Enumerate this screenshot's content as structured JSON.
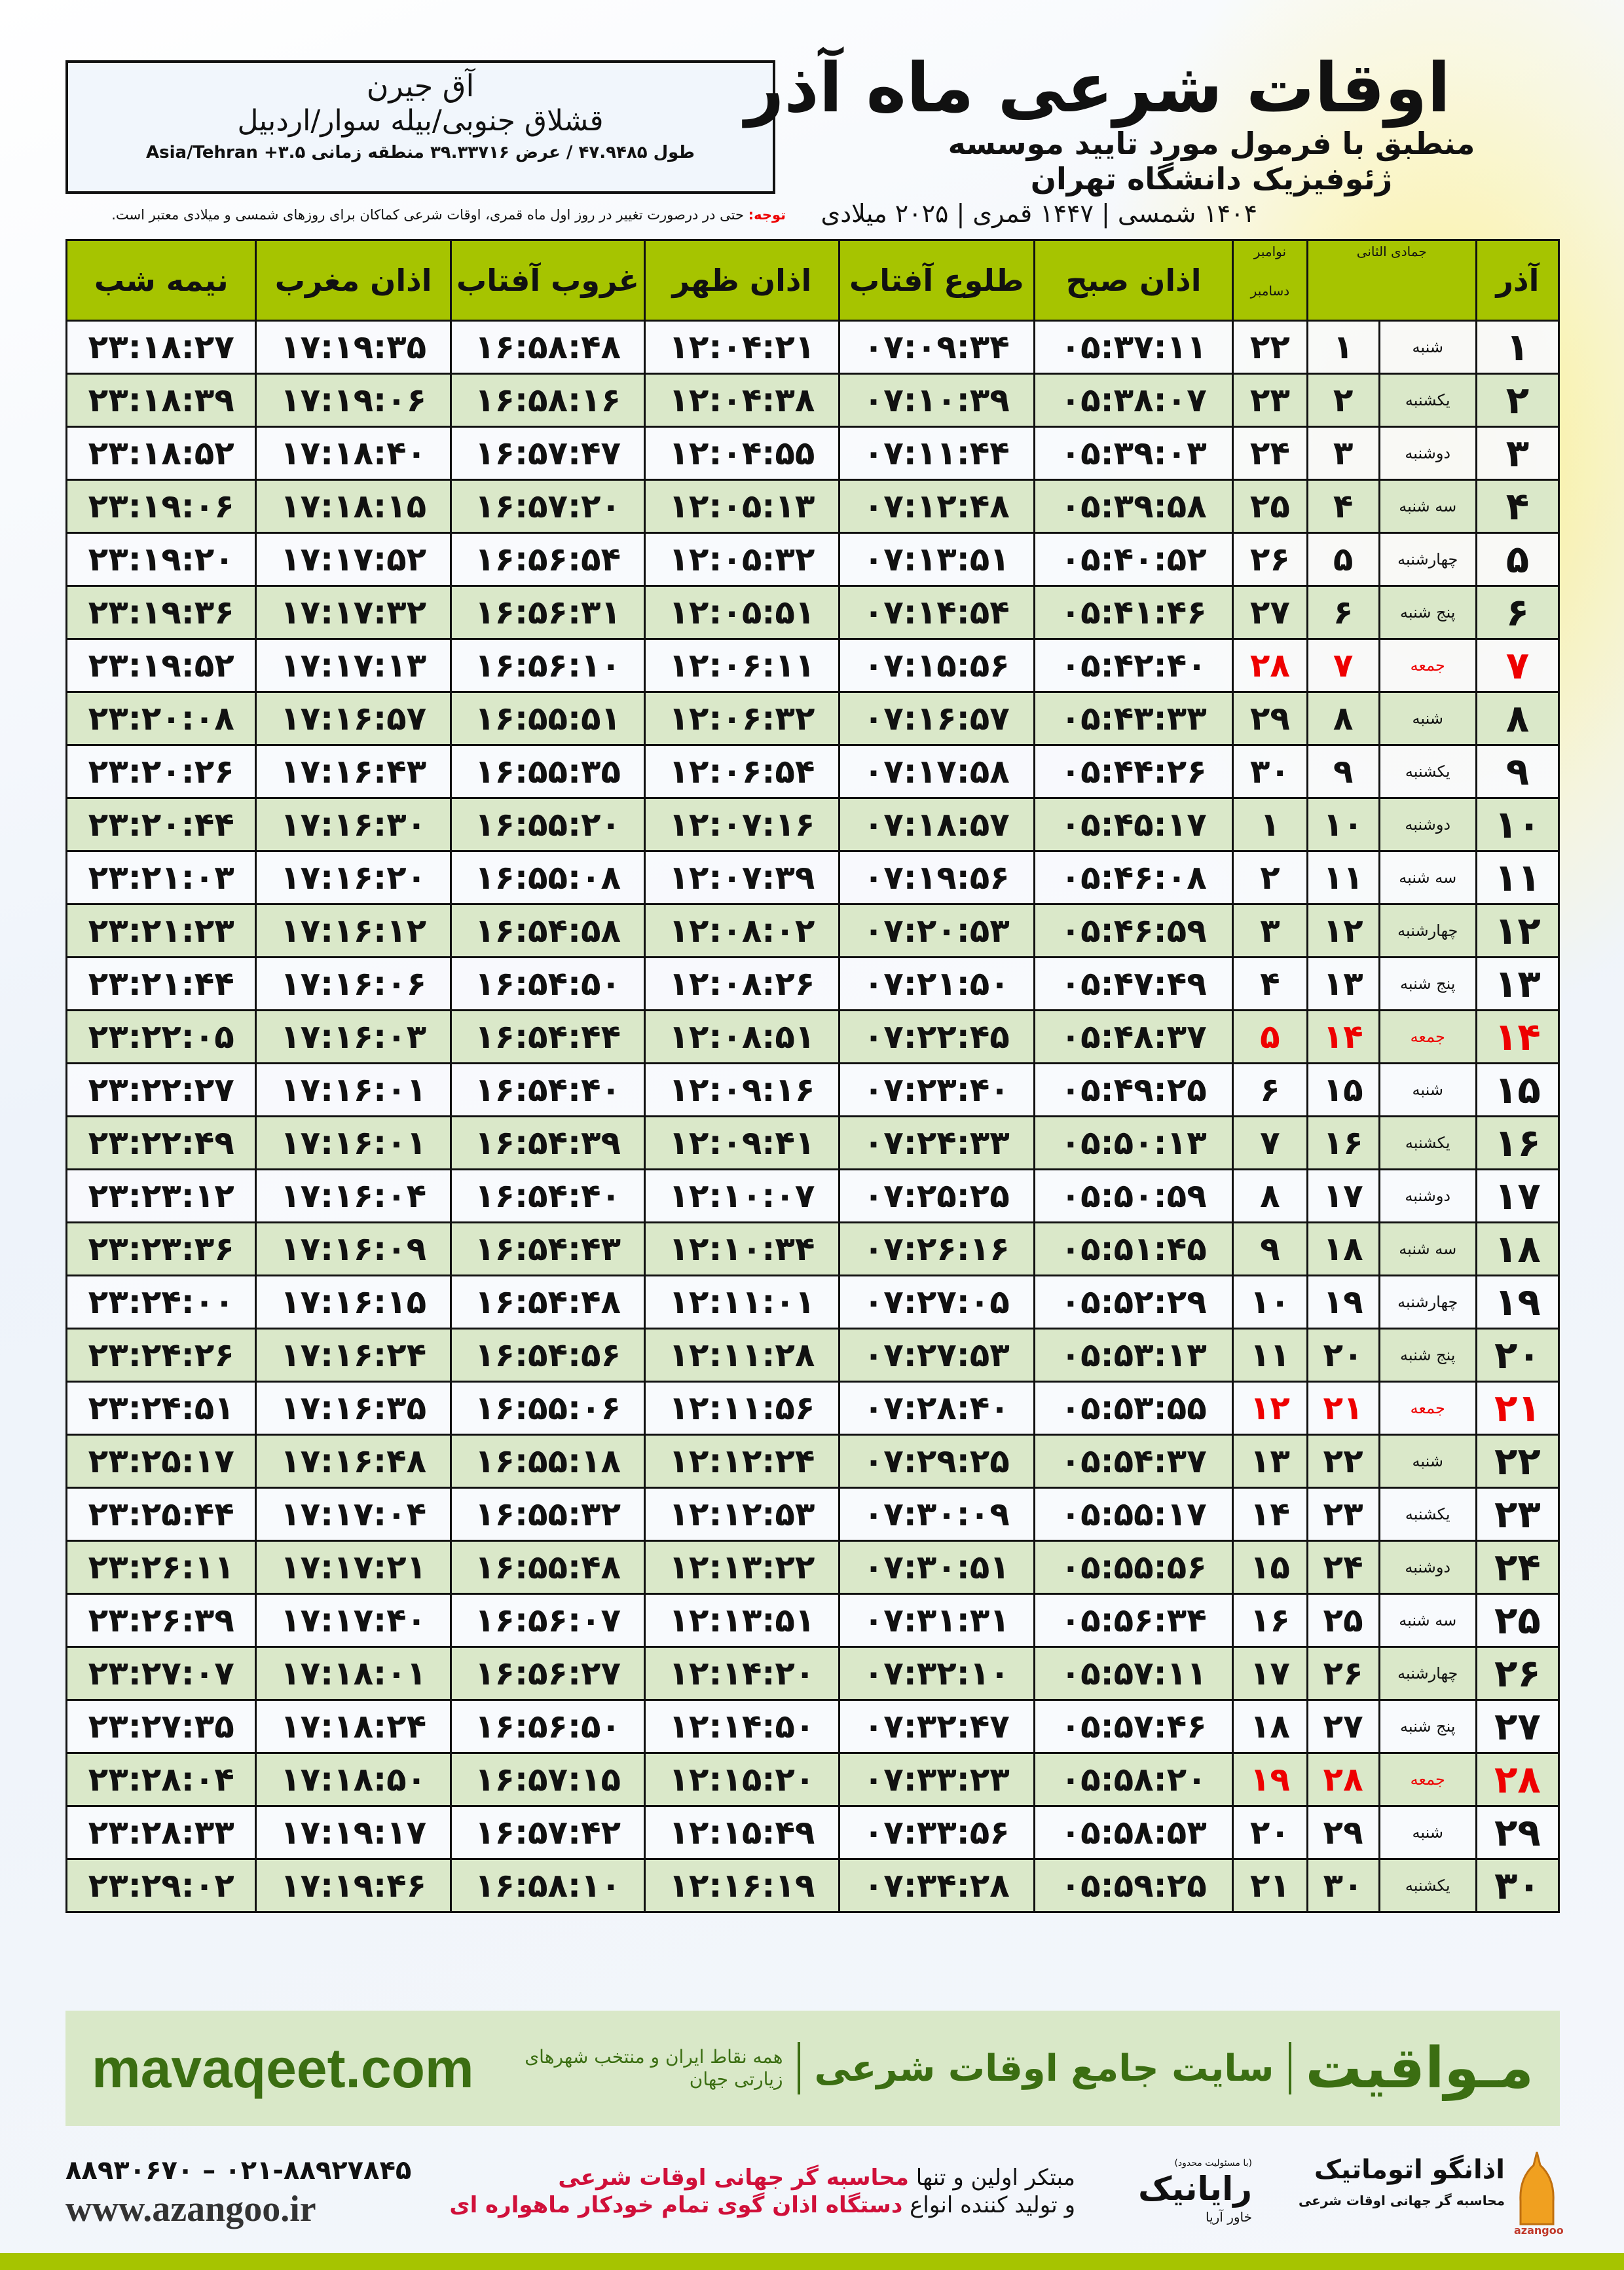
{
  "location": {
    "name": "آق جیرن",
    "region": "قشلاق جنوبی/بیله سوار/اردبیل",
    "coords": "طول ۴۷.۹۴۸۵ / عرض ۳۹.۳۳۷۱۶ منطقه زمانی ۳.۵+ Asia/Tehran"
  },
  "header": {
    "title": "اوقات شرعی ماه آذر",
    "subtitle": "منطبق با فرمول مورد تایید موسسه ژئوفیزیک دانشگاه تهران",
    "years": "۱۴۰۴ شمسی | ۱۴۴۷ قمری | ۲۰۲۵ میلادی"
  },
  "note": {
    "label": "توجه:",
    "text": " حتی در درصورت تغییر در روز اول ماه قمری، اوقات شرعی کماکان برای روزهای شمسی و میلادی معتبر است."
  },
  "columns": {
    "day": "آذر",
    "hijri": "جمادی الثانی",
    "gregorian_top": "نوامبر",
    "gregorian_bottom": "دسامبر",
    "fajr": "اذان صبح",
    "sunrise": "طلوع آفتاب",
    "dhuhr": "اذان ظهر",
    "sunset": "غروب آفتاب",
    "maghrib": "اذان مغرب",
    "midnight": "نیمه شب"
  },
  "colors": {
    "header_green": "#a6c400",
    "row_alt": "#dae8c9",
    "holiday": "#e00000",
    "brand_green": "#3b6e12"
  },
  "rows": [
    {
      "day": "۱",
      "weekday": "شنبه",
      "hijri": "۱",
      "greg": "۲۲",
      "fajr": "۰۵:۳۷:۱۱",
      "sunrise": "۰۷:۰۹:۳۴",
      "dhuhr": "۱۲:۰۴:۲۱",
      "sunset": "۱۶:۵۸:۴۸",
      "maghrib": "۱۷:۱۹:۳۵",
      "midnight": "۲۳:۱۸:۲۷",
      "holiday": false
    },
    {
      "day": "۲",
      "weekday": "یکشنبه",
      "hijri": "۲",
      "greg": "۲۳",
      "fajr": "۰۵:۳۸:۰۷",
      "sunrise": "۰۷:۱۰:۳۹",
      "dhuhr": "۱۲:۰۴:۳۸",
      "sunset": "۱۶:۵۸:۱۶",
      "maghrib": "۱۷:۱۹:۰۶",
      "midnight": "۲۳:۱۸:۳۹",
      "holiday": false
    },
    {
      "day": "۳",
      "weekday": "دوشنبه",
      "hijri": "۳",
      "greg": "۲۴",
      "fajr": "۰۵:۳۹:۰۳",
      "sunrise": "۰۷:۱۱:۴۴",
      "dhuhr": "۱۲:۰۴:۵۵",
      "sunset": "۱۶:۵۷:۴۷",
      "maghrib": "۱۷:۱۸:۴۰",
      "midnight": "۲۳:۱۸:۵۲",
      "holiday": false
    },
    {
      "day": "۴",
      "weekday": "سه شنبه",
      "hijri": "۴",
      "greg": "۲۵",
      "fajr": "۰۵:۳۹:۵۸",
      "sunrise": "۰۷:۱۲:۴۸",
      "dhuhr": "۱۲:۰۵:۱۳",
      "sunset": "۱۶:۵۷:۲۰",
      "maghrib": "۱۷:۱۸:۱۵",
      "midnight": "۲۳:۱۹:۰۶",
      "holiday": false
    },
    {
      "day": "۵",
      "weekday": "چهارشنبه",
      "hijri": "۵",
      "greg": "۲۶",
      "fajr": "۰۵:۴۰:۵۲",
      "sunrise": "۰۷:۱۳:۵۱",
      "dhuhr": "۱۲:۰۵:۳۲",
      "sunset": "۱۶:۵۶:۵۴",
      "maghrib": "۱۷:۱۷:۵۲",
      "midnight": "۲۳:۱۹:۲۰",
      "holiday": false
    },
    {
      "day": "۶",
      "weekday": "پنج شنبه",
      "hijri": "۶",
      "greg": "۲۷",
      "fajr": "۰۵:۴۱:۴۶",
      "sunrise": "۰۷:۱۴:۵۴",
      "dhuhr": "۱۲:۰۵:۵۱",
      "sunset": "۱۶:۵۶:۳۱",
      "maghrib": "۱۷:۱۷:۳۲",
      "midnight": "۲۳:۱۹:۳۶",
      "holiday": false
    },
    {
      "day": "۷",
      "weekday": "جمعه",
      "hijri": "۷",
      "greg": "۲۸",
      "fajr": "۰۵:۴۲:۴۰",
      "sunrise": "۰۷:۱۵:۵۶",
      "dhuhr": "۱۲:۰۶:۱۱",
      "sunset": "۱۶:۵۶:۱۰",
      "maghrib": "۱۷:۱۷:۱۳",
      "midnight": "۲۳:۱۹:۵۲",
      "holiday": true
    },
    {
      "day": "۸",
      "weekday": "شنبه",
      "hijri": "۸",
      "greg": "۲۹",
      "fajr": "۰۵:۴۳:۳۳",
      "sunrise": "۰۷:۱۶:۵۷",
      "dhuhr": "۱۲:۰۶:۳۲",
      "sunset": "۱۶:۵۵:۵۱",
      "maghrib": "۱۷:۱۶:۵۷",
      "midnight": "۲۳:۲۰:۰۸",
      "holiday": false
    },
    {
      "day": "۹",
      "weekday": "یکشنبه",
      "hijri": "۹",
      "greg": "۳۰",
      "fajr": "۰۵:۴۴:۲۶",
      "sunrise": "۰۷:۱۷:۵۸",
      "dhuhr": "۱۲:۰۶:۵۴",
      "sunset": "۱۶:۵۵:۳۵",
      "maghrib": "۱۷:۱۶:۴۳",
      "midnight": "۲۳:۲۰:۲۶",
      "holiday": false
    },
    {
      "day": "۱۰",
      "weekday": "دوشنبه",
      "hijri": "۱۰",
      "greg": "۱",
      "fajr": "۰۵:۴۵:۱۷",
      "sunrise": "۰۷:۱۸:۵۷",
      "dhuhr": "۱۲:۰۷:۱۶",
      "sunset": "۱۶:۵۵:۲۰",
      "maghrib": "۱۷:۱۶:۳۰",
      "midnight": "۲۳:۲۰:۴۴",
      "holiday": false
    },
    {
      "day": "۱۱",
      "weekday": "سه شنبه",
      "hijri": "۱۱",
      "greg": "۲",
      "fajr": "۰۵:۴۶:۰۸",
      "sunrise": "۰۷:۱۹:۵۶",
      "dhuhr": "۱۲:۰۷:۳۹",
      "sunset": "۱۶:۵۵:۰۸",
      "maghrib": "۱۷:۱۶:۲۰",
      "midnight": "۲۳:۲۱:۰۳",
      "holiday": false
    },
    {
      "day": "۱۲",
      "weekday": "چهارشنبه",
      "hijri": "۱۲",
      "greg": "۳",
      "fajr": "۰۵:۴۶:۵۹",
      "sunrise": "۰۷:۲۰:۵۳",
      "dhuhr": "۱۲:۰۸:۰۲",
      "sunset": "۱۶:۵۴:۵۸",
      "maghrib": "۱۷:۱۶:۱۲",
      "midnight": "۲۳:۲۱:۲۳",
      "holiday": false
    },
    {
      "day": "۱۳",
      "weekday": "پنج شنبه",
      "hijri": "۱۳",
      "greg": "۴",
      "fajr": "۰۵:۴۷:۴۹",
      "sunrise": "۰۷:۲۱:۵۰",
      "dhuhr": "۱۲:۰۸:۲۶",
      "sunset": "۱۶:۵۴:۵۰",
      "maghrib": "۱۷:۱۶:۰۶",
      "midnight": "۲۳:۲۱:۴۴",
      "holiday": false
    },
    {
      "day": "۱۴",
      "weekday": "جمعه",
      "hijri": "۱۴",
      "greg": "۵",
      "fajr": "۰۵:۴۸:۳۷",
      "sunrise": "۰۷:۲۲:۴۵",
      "dhuhr": "۱۲:۰۸:۵۱",
      "sunset": "۱۶:۵۴:۴۴",
      "maghrib": "۱۷:۱۶:۰۳",
      "midnight": "۲۳:۲۲:۰۵",
      "holiday": true
    },
    {
      "day": "۱۵",
      "weekday": "شنبه",
      "hijri": "۱۵",
      "greg": "۶",
      "fajr": "۰۵:۴۹:۲۵",
      "sunrise": "۰۷:۲۳:۴۰",
      "dhuhr": "۱۲:۰۹:۱۶",
      "sunset": "۱۶:۵۴:۴۰",
      "maghrib": "۱۷:۱۶:۰۱",
      "midnight": "۲۳:۲۲:۲۷",
      "holiday": false
    },
    {
      "day": "۱۶",
      "weekday": "یکشنبه",
      "hijri": "۱۶",
      "greg": "۷",
      "fajr": "۰۵:۵۰:۱۳",
      "sunrise": "۰۷:۲۴:۳۳",
      "dhuhr": "۱۲:۰۹:۴۱",
      "sunset": "۱۶:۵۴:۳۹",
      "maghrib": "۱۷:۱۶:۰۱",
      "midnight": "۲۳:۲۲:۴۹",
      "holiday": false
    },
    {
      "day": "۱۷",
      "weekday": "دوشنبه",
      "hijri": "۱۷",
      "greg": "۸",
      "fajr": "۰۵:۵۰:۵۹",
      "sunrise": "۰۷:۲۵:۲۵",
      "dhuhr": "۱۲:۱۰:۰۷",
      "sunset": "۱۶:۵۴:۴۰",
      "maghrib": "۱۷:۱۶:۰۴",
      "midnight": "۲۳:۲۳:۱۲",
      "holiday": false
    },
    {
      "day": "۱۸",
      "weekday": "سه شنبه",
      "hijri": "۱۸",
      "greg": "۹",
      "fajr": "۰۵:۵۱:۴۵",
      "sunrise": "۰۷:۲۶:۱۶",
      "dhuhr": "۱۲:۱۰:۳۴",
      "sunset": "۱۶:۵۴:۴۳",
      "maghrib": "۱۷:۱۶:۰۹",
      "midnight": "۲۳:۲۳:۳۶",
      "holiday": false
    },
    {
      "day": "۱۹",
      "weekday": "چهارشنبه",
      "hijri": "۱۹",
      "greg": "۱۰",
      "fajr": "۰۵:۵۲:۲۹",
      "sunrise": "۰۷:۲۷:۰۵",
      "dhuhr": "۱۲:۱۱:۰۱",
      "sunset": "۱۶:۵۴:۴۸",
      "maghrib": "۱۷:۱۶:۱۵",
      "midnight": "۲۳:۲۴:۰۰",
      "holiday": false
    },
    {
      "day": "۲۰",
      "weekday": "پنج شنبه",
      "hijri": "۲۰",
      "greg": "۱۱",
      "fajr": "۰۵:۵۳:۱۳",
      "sunrise": "۰۷:۲۷:۵۳",
      "dhuhr": "۱۲:۱۱:۲۸",
      "sunset": "۱۶:۵۴:۵۶",
      "maghrib": "۱۷:۱۶:۲۴",
      "midnight": "۲۳:۲۴:۲۶",
      "holiday": false
    },
    {
      "day": "۲۱",
      "weekday": "جمعه",
      "hijri": "۲۱",
      "greg": "۱۲",
      "fajr": "۰۵:۵۳:۵۵",
      "sunrise": "۰۷:۲۸:۴۰",
      "dhuhr": "۱۲:۱۱:۵۶",
      "sunset": "۱۶:۵۵:۰۶",
      "maghrib": "۱۷:۱۶:۳۵",
      "midnight": "۲۳:۲۴:۵۱",
      "holiday": true
    },
    {
      "day": "۲۲",
      "weekday": "شنبه",
      "hijri": "۲۲",
      "greg": "۱۳",
      "fajr": "۰۵:۵۴:۳۷",
      "sunrise": "۰۷:۲۹:۲۵",
      "dhuhr": "۱۲:۱۲:۲۴",
      "sunset": "۱۶:۵۵:۱۸",
      "maghrib": "۱۷:۱۶:۴۸",
      "midnight": "۲۳:۲۵:۱۷",
      "holiday": false
    },
    {
      "day": "۲۳",
      "weekday": "یکشنبه",
      "hijri": "۲۳",
      "greg": "۱۴",
      "fajr": "۰۵:۵۵:۱۷",
      "sunrise": "۰۷:۳۰:۰۹",
      "dhuhr": "۱۲:۱۲:۵۳",
      "sunset": "۱۶:۵۵:۳۲",
      "maghrib": "۱۷:۱۷:۰۴",
      "midnight": "۲۳:۲۵:۴۴",
      "holiday": false
    },
    {
      "day": "۲۴",
      "weekday": "دوشنبه",
      "hijri": "۲۴",
      "greg": "۱۵",
      "fajr": "۰۵:۵۵:۵۶",
      "sunrise": "۰۷:۳۰:۵۱",
      "dhuhr": "۱۲:۱۳:۲۲",
      "sunset": "۱۶:۵۵:۴۸",
      "maghrib": "۱۷:۱۷:۲۱",
      "midnight": "۲۳:۲۶:۱۱",
      "holiday": false
    },
    {
      "day": "۲۵",
      "weekday": "سه شنبه",
      "hijri": "۲۵",
      "greg": "۱۶",
      "fajr": "۰۵:۵۶:۳۴",
      "sunrise": "۰۷:۳۱:۳۱",
      "dhuhr": "۱۲:۱۳:۵۱",
      "sunset": "۱۶:۵۶:۰۷",
      "maghrib": "۱۷:۱۷:۴۰",
      "midnight": "۲۳:۲۶:۳۹",
      "holiday": false
    },
    {
      "day": "۲۶",
      "weekday": "چهارشنبه",
      "hijri": "۲۶",
      "greg": "۱۷",
      "fajr": "۰۵:۵۷:۱۱",
      "sunrise": "۰۷:۳۲:۱۰",
      "dhuhr": "۱۲:۱۴:۲۰",
      "sunset": "۱۶:۵۶:۲۷",
      "maghrib": "۱۷:۱۸:۰۱",
      "midnight": "۲۳:۲۷:۰۷",
      "holiday": false
    },
    {
      "day": "۲۷",
      "weekday": "پنج شنبه",
      "hijri": "۲۷",
      "greg": "۱۸",
      "fajr": "۰۵:۵۷:۴۶",
      "sunrise": "۰۷:۳۲:۴۷",
      "dhuhr": "۱۲:۱۴:۵۰",
      "sunset": "۱۶:۵۶:۵۰",
      "maghrib": "۱۷:۱۸:۲۴",
      "midnight": "۲۳:۲۷:۳۵",
      "holiday": false
    },
    {
      "day": "۲۸",
      "weekday": "جمعه",
      "hijri": "۲۸",
      "greg": "۱۹",
      "fajr": "۰۵:۵۸:۲۰",
      "sunrise": "۰۷:۳۳:۲۳",
      "dhuhr": "۱۲:۱۵:۲۰",
      "sunset": "۱۶:۵۷:۱۵",
      "maghrib": "۱۷:۱۸:۵۰",
      "midnight": "۲۳:۲۸:۰۴",
      "holiday": true
    },
    {
      "day": "۲۹",
      "weekday": "شنبه",
      "hijri": "۲۹",
      "greg": "۲۰",
      "fajr": "۰۵:۵۸:۵۳",
      "sunrise": "۰۷:۳۳:۵۶",
      "dhuhr": "۱۲:۱۵:۴۹",
      "sunset": "۱۶:۵۷:۴۲",
      "maghrib": "۱۷:۱۹:۱۷",
      "midnight": "۲۳:۲۸:۳۳",
      "holiday": false
    },
    {
      "day": "۳۰",
      "weekday": "یکشنبه",
      "hijri": "۳۰",
      "greg": "۲۱",
      "fajr": "۰۵:۵۹:۲۵",
      "sunrise": "۰۷:۳۴:۲۸",
      "dhuhr": "۱۲:۱۶:۱۹",
      "sunset": "۱۶:۵۸:۱۰",
      "maghrib": "۱۷:۱۹:۴۶",
      "midnight": "۲۳:۲۹:۰۲",
      "holiday": false
    }
  ],
  "footer": {
    "brand": "مـواقیت",
    "tagline": "سایت جامع اوقات شرعی",
    "subline": "همه نقاط ایران و منتخب شهرهای زیارتی جهان",
    "site": "mavaqeet.com",
    "promo1_a": "مبتکر اولین و تنها ",
    "promo1_b": "محاسبه گر جهانی اوقات شرعی",
    "promo2_a": "و تولید کننده انواع ",
    "promo2_b": "دستگاه اذان گوی تمام خودکار ماهواره ای",
    "phone": "۰۲۱-۸۸۹۲۷۸۴۵ – ۸۸۹۳۰۶۷۰",
    "url": "www.azangoo.ir",
    "logo_rayanik": "رایانیک",
    "logo_rayanik_sub": "خاور آریا",
    "logo_rayanik_note": "(با مسئولیت محدود)",
    "logo_azangoo": "اذانگو اتوماتیک",
    "logo_azangoo_sub": "محاسبه گر جهانی اوقات شرعی",
    "logo_azangoo_latin": "azangoo"
  }
}
